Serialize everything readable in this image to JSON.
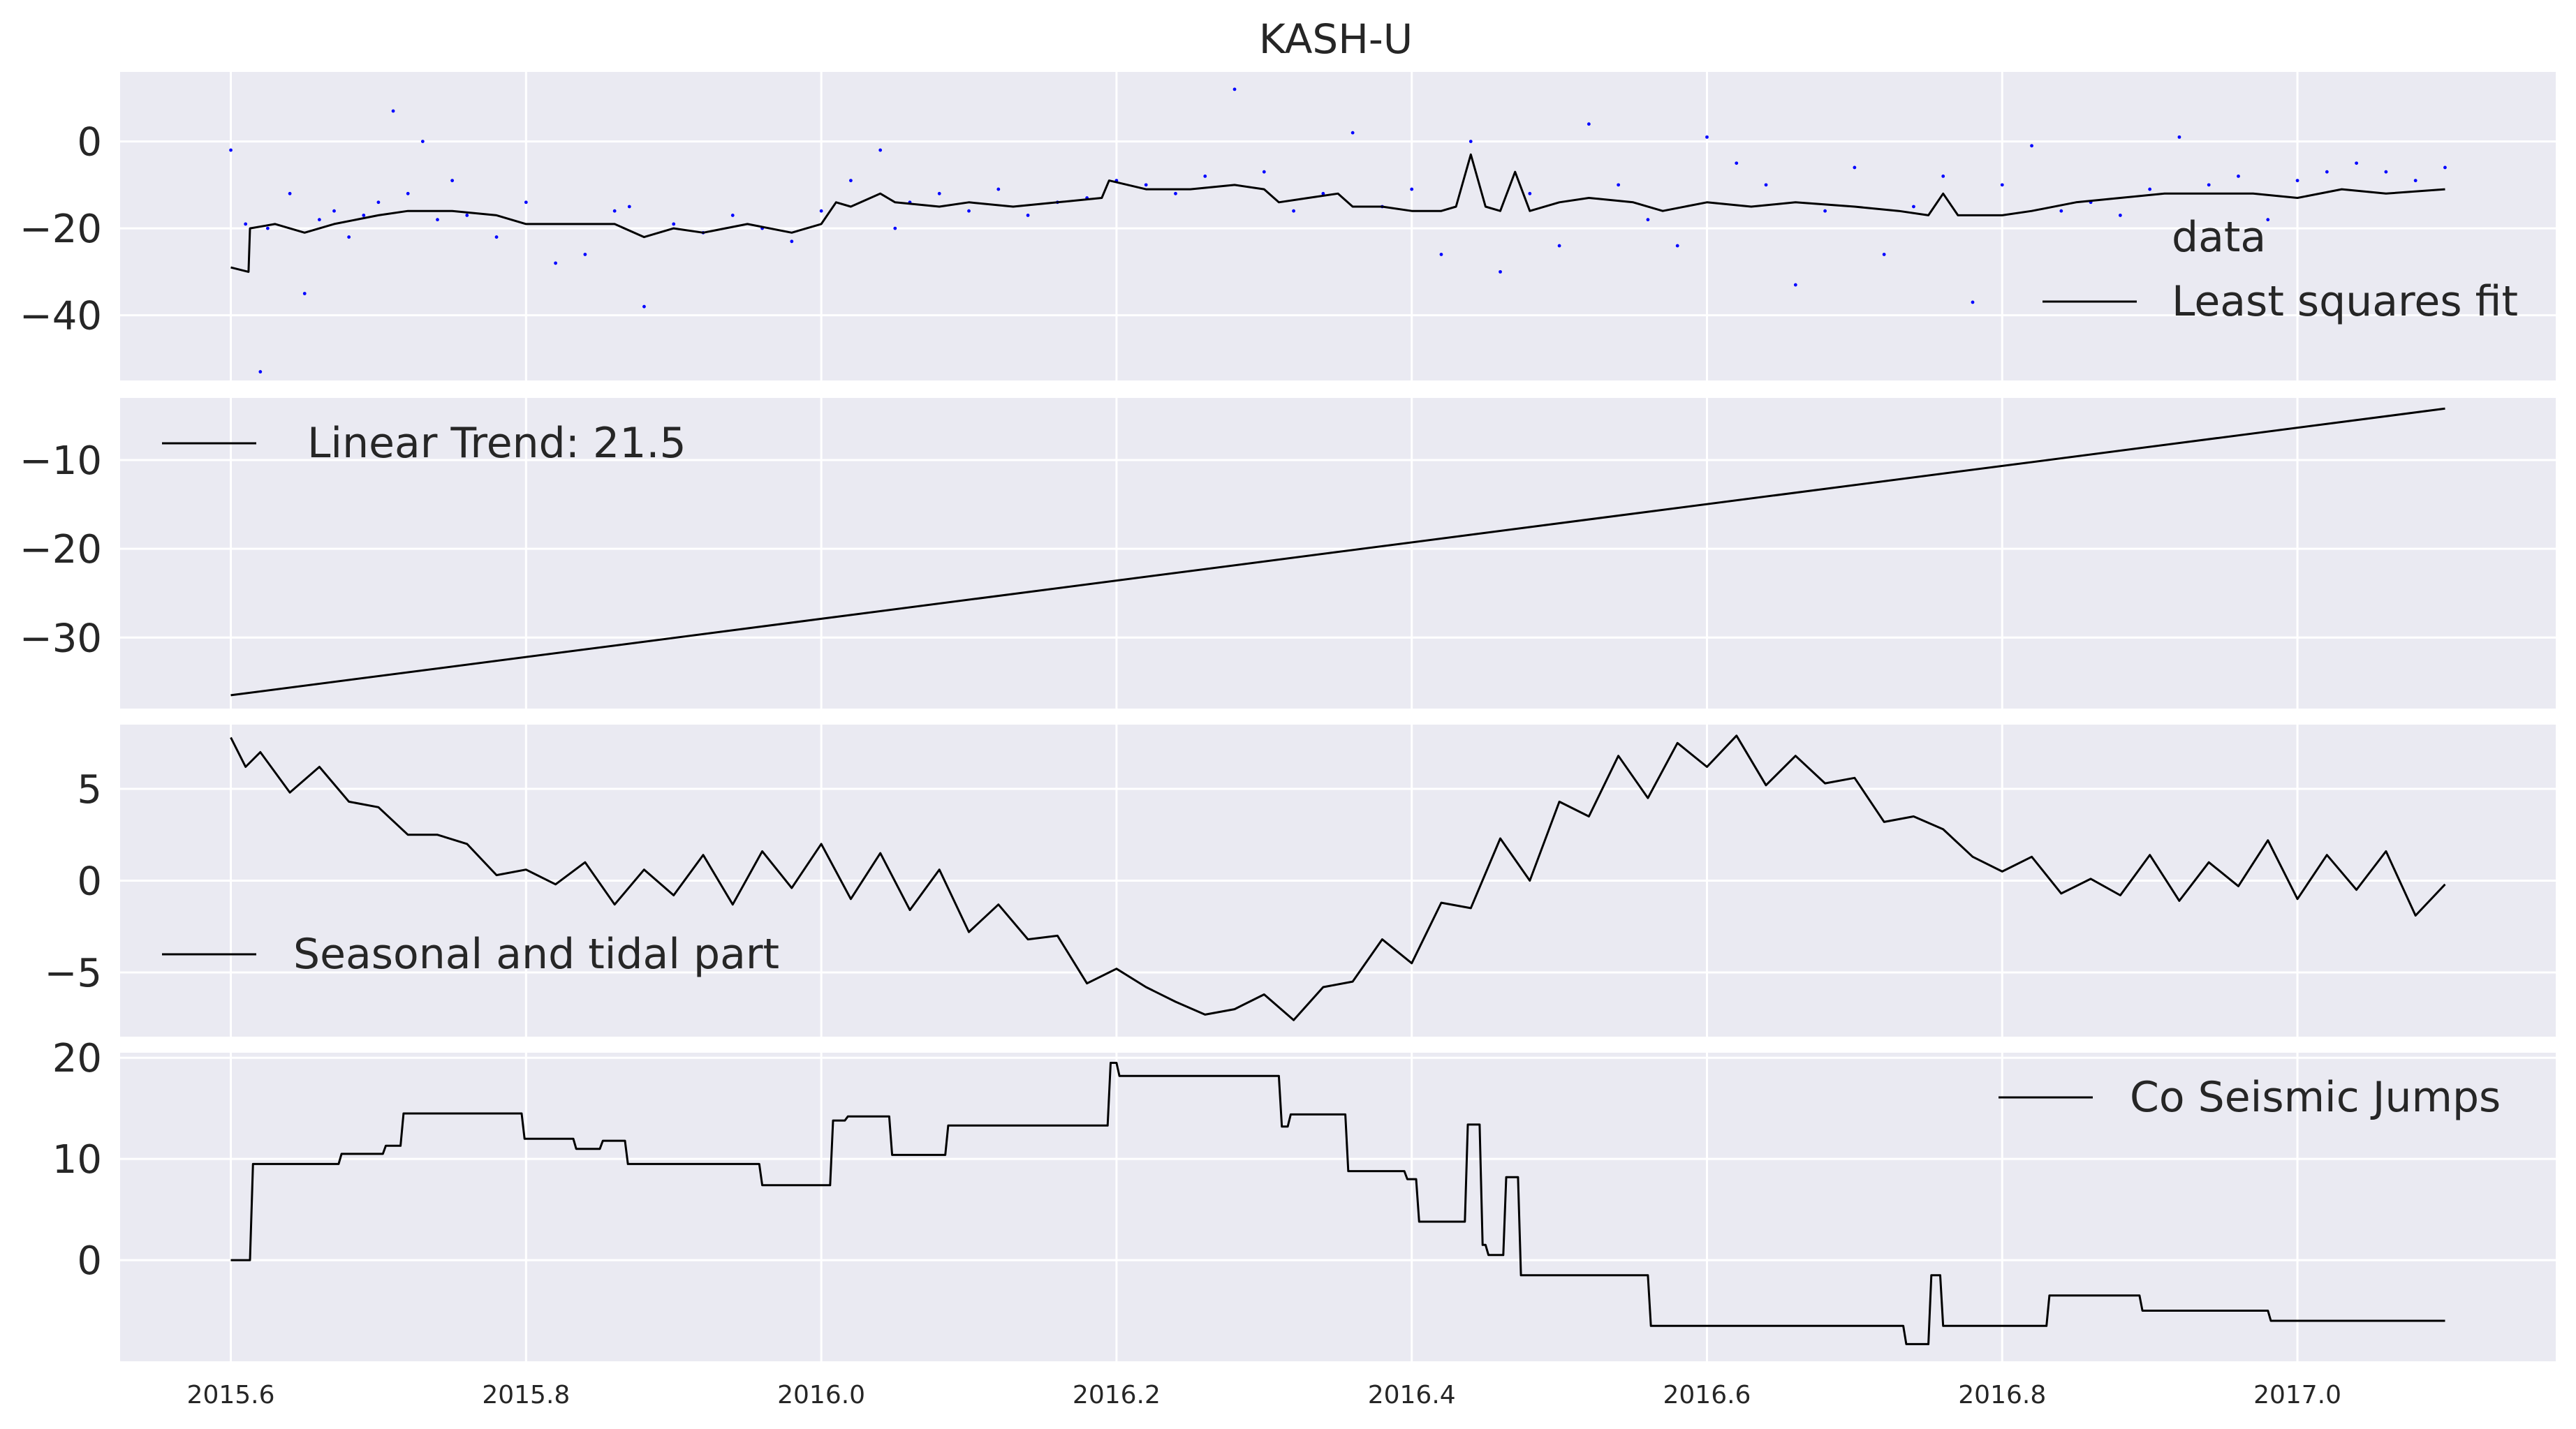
{
  "title": "KASH-U",
  "colors": {
    "panel_bg": "#eaeaf2",
    "grid": "#ffffff",
    "line": "#000000",
    "points": "#0000ff",
    "text": "#262626"
  },
  "x_ticks": [
    "2015.6",
    "2015.8",
    "2016.0",
    "2016.2",
    "2016.4",
    "2016.6",
    "2016.8",
    "2017.0"
  ],
  "panels": [
    {
      "y_ticks": [
        "0",
        "−20",
        "−40"
      ],
      "legend": [
        "data",
        "Least squares fit"
      ]
    },
    {
      "y_ticks": [
        "−10",
        "−20",
        "−30"
      ],
      "legend": [
        "Linear Trend: 21.5"
      ]
    },
    {
      "y_ticks": [
        "5",
        "0",
        "−5"
      ],
      "legend": [
        "Seasonal and tidal part"
      ]
    },
    {
      "y_ticks": [
        "20",
        "10",
        "0"
      ],
      "legend": [
        "Co Seismic Jumps"
      ]
    }
  ],
  "chart_data": [
    {
      "type": "scatter",
      "title": "KASH-U",
      "xlim": [
        2015.525,
        2017.175
      ],
      "ylim": [
        -55,
        16
      ],
      "y_ticks": [
        0,
        -20,
        -40
      ],
      "legend_placement": "lower-right",
      "series": [
        {
          "name": "data",
          "style": "points",
          "x": [
            2015.6,
            2015.61,
            2015.62,
            2015.625,
            2015.64,
            2015.65,
            2015.66,
            2015.67,
            2015.68,
            2015.69,
            2015.7,
            2015.71,
            2015.72,
            2015.73,
            2015.74,
            2015.75,
            2015.76,
            2015.78,
            2015.8,
            2015.82,
            2015.84,
            2015.86,
            2015.87,
            2015.88,
            2015.9,
            2015.92,
            2015.94,
            2015.96,
            2015.98,
            2016.0,
            2016.02,
            2016.04,
            2016.05,
            2016.06,
            2016.08,
            2016.1,
            2016.12,
            2016.14,
            2016.16,
            2016.18,
            2016.2,
            2016.22,
            2016.24,
            2016.26,
            2016.28,
            2016.3,
            2016.32,
            2016.34,
            2016.36,
            2016.38,
            2016.4,
            2016.42,
            2016.44,
            2016.46,
            2016.48,
            2016.5,
            2016.52,
            2016.54,
            2016.56,
            2016.58,
            2016.6,
            2016.62,
            2016.64,
            2016.66,
            2016.68,
            2016.7,
            2016.72,
            2016.74,
            2016.76,
            2016.78,
            2016.8,
            2016.82,
            2016.84,
            2016.86,
            2016.88,
            2016.9,
            2016.92,
            2016.94,
            2016.96,
            2016.98,
            2017.0,
            2017.02,
            2017.04,
            2017.06,
            2017.08,
            2017.1
          ],
          "y": [
            -2,
            -19,
            -53,
            -20,
            -12,
            -35,
            -18,
            -16,
            -22,
            -17,
            -14,
            7,
            -12,
            0,
            -18,
            -9,
            -17,
            -22,
            -14,
            -28,
            -26,
            -16,
            -15,
            -38,
            -19,
            -21,
            -17,
            -20,
            -23,
            -16,
            -9,
            -2,
            -20,
            -14,
            -12,
            -16,
            -11,
            -17,
            -14,
            -13,
            -9,
            -10,
            -12,
            -8,
            12,
            -7,
            -16,
            -12,
            2,
            -15,
            -11,
            -26,
            0,
            -30,
            -12,
            -24,
            4,
            -10,
            -18,
            -24,
            1,
            -5,
            -10,
            -33,
            -16,
            -6,
            -26,
            -15,
            -8,
            -37,
            -10,
            -1,
            -16,
            -14,
            -17,
            -11,
            1,
            -10,
            -8,
            -18,
            -9,
            -7,
            -5,
            -7,
            -9,
            -6
          ]
        },
        {
          "name": "Least squares fit",
          "style": "line",
          "x": [
            2015.6,
            2015.612,
            2015.613,
            2015.63,
            2015.65,
            2015.67,
            2015.7,
            2015.72,
            2015.75,
            2015.78,
            2015.8,
            2015.82,
            2015.84,
            2015.86,
            2015.88,
            2015.9,
            2015.92,
            2015.95,
            2015.98,
            2016.0,
            2016.01,
            2016.02,
            2016.04,
            2016.05,
            2016.08,
            2016.1,
            2016.13,
            2016.16,
            2016.19,
            2016.195,
            2016.22,
            2016.25,
            2016.28,
            2016.3,
            2016.31,
            2016.33,
            2016.35,
            2016.36,
            2016.38,
            2016.4,
            2016.42,
            2016.43,
            2016.44,
            2016.45,
            2016.46,
            2016.47,
            2016.48,
            2016.5,
            2016.52,
            2016.55,
            2016.57,
            2016.6,
            2016.63,
            2016.66,
            2016.7,
            2016.73,
            2016.75,
            2016.76,
            2016.77,
            2016.8,
            2016.82,
            2016.85,
            2016.88,
            2016.91,
            2016.94,
            2016.97,
            2017.0,
            2017.03,
            2017.06,
            2017.1
          ],
          "y": [
            -29,
            -30,
            -20,
            -19,
            -21,
            -19,
            -17,
            -16,
            -16,
            -17,
            -19,
            -19,
            -19,
            -19,
            -22,
            -20,
            -21,
            -19,
            -21,
            -19,
            -14,
            -15,
            -12,
            -14,
            -15,
            -14,
            -15,
            -14,
            -13,
            -9,
            -11,
            -11,
            -10,
            -11,
            -14,
            -13,
            -12,
            -15,
            -15,
            -16,
            -16,
            -15,
            -3,
            -15,
            -16,
            -7,
            -16,
            -14,
            -13,
            -14,
            -16,
            -14,
            -15,
            -14,
            -15,
            -16,
            -17,
            -12,
            -17,
            -17,
            -16,
            -14,
            -13,
            -12,
            -12,
            -12,
            -13,
            -11,
            -12,
            -11
          ]
        }
      ]
    },
    {
      "type": "line",
      "xlim": [
        2015.525,
        2017.175
      ],
      "ylim": [
        -38,
        -3
      ],
      "y_ticks": [
        -10,
        -20,
        -30
      ],
      "legend_placement": "upper-left",
      "series": [
        {
          "name": "Linear Trend: 21.5",
          "x": [
            2015.6,
            2017.1
          ],
          "y": [
            -36.5,
            -4.2
          ]
        }
      ]
    },
    {
      "type": "line",
      "xlim": [
        2015.525,
        2017.175
      ],
      "ylim": [
        -8.5,
        8.5
      ],
      "y_ticks": [
        5,
        0,
        -5
      ],
      "legend_placement": "lower-left",
      "series": [
        {
          "name": "Seasonal and tidal part",
          "x": [
            2015.6,
            2015.61,
            2015.62,
            2015.64,
            2015.66,
            2015.68,
            2015.7,
            2015.72,
            2015.74,
            2015.76,
            2015.78,
            2015.8,
            2015.82,
            2015.84,
            2015.86,
            2015.88,
            2015.9,
            2015.92,
            2015.94,
            2015.96,
            2015.98,
            2016.0,
            2016.02,
            2016.04,
            2016.06,
            2016.08,
            2016.1,
            2016.12,
            2016.14,
            2016.16,
            2016.18,
            2016.2,
            2016.22,
            2016.24,
            2016.26,
            2016.28,
            2016.3,
            2016.32,
            2016.34,
            2016.36,
            2016.38,
            2016.4,
            2016.42,
            2016.44,
            2016.46,
            2016.48,
            2016.5,
            2016.52,
            2016.54,
            2016.56,
            2016.58,
            2016.6,
            2016.62,
            2016.64,
            2016.66,
            2016.68,
            2016.7,
            2016.72,
            2016.74,
            2016.76,
            2016.78,
            2016.8,
            2016.82,
            2016.84,
            2016.86,
            2016.88,
            2016.9,
            2016.92,
            2016.94,
            2016.96,
            2016.98,
            2017.0,
            2017.02,
            2017.04,
            2017.06,
            2017.08,
            2017.1
          ],
          "y": [
            7.8,
            6.2,
            7.0,
            4.8,
            6.2,
            4.3,
            4.0,
            2.5,
            2.5,
            2.0,
            0.3,
            0.6,
            -0.2,
            1.0,
            -1.3,
            0.6,
            -0.8,
            1.4,
            -1.3,
            1.6,
            -0.4,
            2.0,
            -1.0,
            1.5,
            -1.6,
            0.6,
            -2.8,
            -1.3,
            -3.2,
            -3.0,
            -5.6,
            -4.8,
            -5.8,
            -6.6,
            -7.3,
            -7.0,
            -6.2,
            -7.6,
            -5.8,
            -5.5,
            -3.2,
            -4.5,
            -1.2,
            -1.5,
            2.3,
            0.0,
            4.3,
            3.5,
            6.8,
            4.5,
            7.5,
            6.2,
            7.9,
            5.2,
            6.8,
            5.3,
            5.6,
            3.2,
            3.5,
            2.8,
            1.3,
            0.5,
            1.3,
            -0.7,
            0.1,
            -0.8,
            1.4,
            -1.1,
            1.0,
            -0.3,
            2.2,
            -1.0,
            1.4,
            -0.5,
            1.6,
            -1.9,
            -0.2
          ]
        }
      ]
    },
    {
      "type": "line",
      "xlim": [
        2015.525,
        2017.175
      ],
      "ylim": [
        -10,
        20.5
      ],
      "y_ticks": [
        20,
        10,
        0
      ],
      "legend_placement": "upper-right",
      "series": [
        {
          "name": "Co Seismic Jumps",
          "x": [
            2015.6,
            2015.613,
            2015.615,
            2015.673,
            2015.675,
            2015.703,
            2015.705,
            2015.715,
            2015.717,
            2015.797,
            2015.799,
            2015.832,
            2015.834,
            2015.85,
            2015.852,
            2015.867,
            2015.869,
            2015.882,
            2015.884,
            2015.958,
            2015.96,
            2016.006,
            2016.008,
            2016.016,
            2016.018,
            2016.046,
            2016.048,
            2016.084,
            2016.086,
            2016.194,
            2016.196,
            2016.2,
            2016.202,
            2016.31,
            2016.312,
            2016.316,
            2016.318,
            2016.355,
            2016.357,
            2016.395,
            2016.397,
            2016.403,
            2016.405,
            2016.407,
            2016.409,
            2016.436,
            2016.438,
            2016.446,
            2016.448,
            2016.45,
            2016.452,
            2016.462,
            2016.464,
            2016.472,
            2016.474,
            2016.56,
            2016.562,
            2016.733,
            2016.735,
            2016.75,
            2016.752,
            2016.758,
            2016.76,
            2016.83,
            2016.832,
            2016.893,
            2016.895,
            2016.98,
            2016.982,
            2017.1
          ],
          "y": [
            0,
            0,
            9.5,
            9.5,
            10.5,
            10.5,
            11.3,
            11.3,
            14.5,
            14.5,
            12,
            12,
            11,
            11,
            11.8,
            11.8,
            9.5,
            9.5,
            9.5,
            9.5,
            7.4,
            7.4,
            13.8,
            13.8,
            14.2,
            14.2,
            10.4,
            10.4,
            13.3,
            13.3,
            19.5,
            19.5,
            18.2,
            18.2,
            13.2,
            13.2,
            14.4,
            14.4,
            8.8,
            8.8,
            8.0,
            8.0,
            3.8,
            3.8,
            3.8,
            3.8,
            13.4,
            13.4,
            1.5,
            1.5,
            0.5,
            0.5,
            8.2,
            8.2,
            -1.5,
            -1.5,
            -6.5,
            -6.5,
            -8.3,
            -8.3,
            -1.5,
            -1.5,
            -6.5,
            -6.5,
            -3.5,
            -3.5,
            -5.0,
            -5.0,
            -6.0,
            -6.0
          ]
        }
      ]
    }
  ]
}
